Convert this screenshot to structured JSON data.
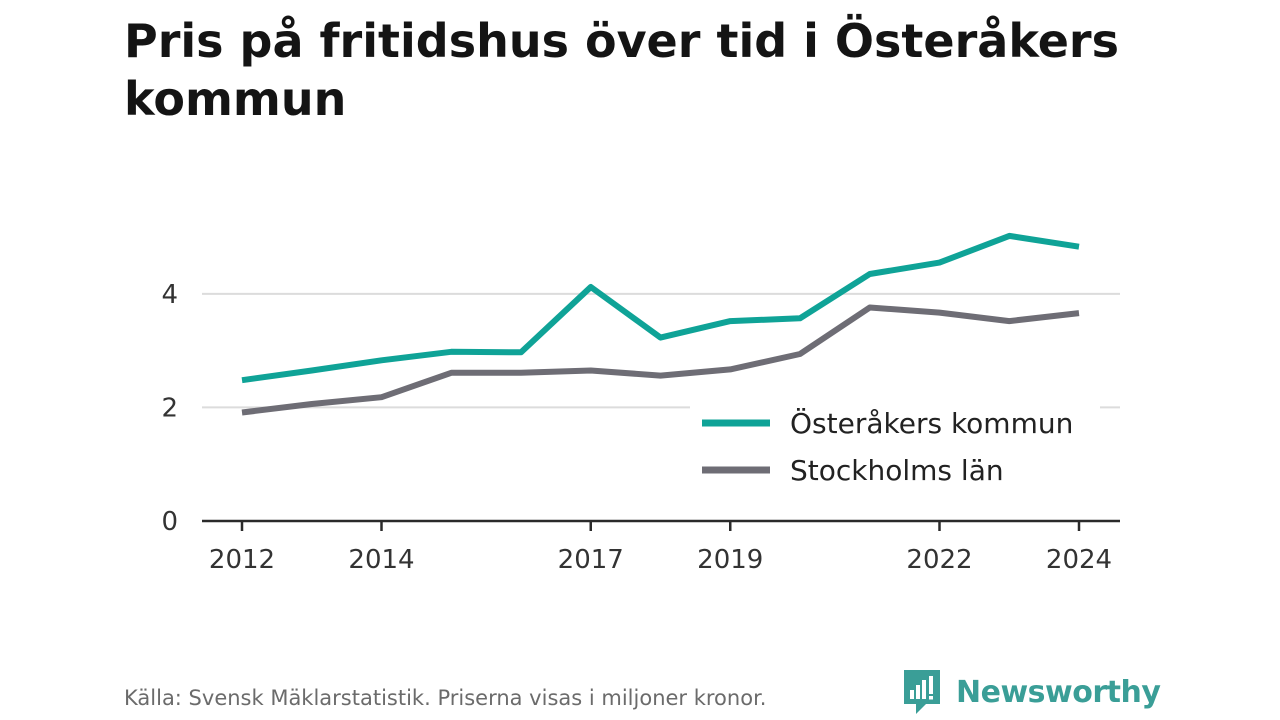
{
  "title": "Pris på fritidshus över tid i Österåkers kommun",
  "source": "Källa: Svensk Mäklarstatistik. Priserna visas i miljoner kronor.",
  "brand": {
    "name": "Newsworthy",
    "icon": "newsworthy-logo-icon",
    "color": "#3a9e97"
  },
  "chart_data": {
    "type": "line",
    "x": [
      2012,
      2013,
      2014,
      2015,
      2016,
      2017,
      2018,
      2019,
      2020,
      2021,
      2022,
      2023,
      2024
    ],
    "x_ticks": [
      "2012",
      "2014",
      "2017",
      "2019",
      "2022",
      "2024"
    ],
    "y_ticks": [
      "0",
      "2",
      "4"
    ],
    "ylim": [
      0,
      5.3
    ],
    "grid": true,
    "legend_position": "bottom-right",
    "series": [
      {
        "name": "Österåkers kommun",
        "color": "#0fa397",
        "values": [
          2.48,
          2.65,
          2.83,
          2.98,
          2.97,
          4.12,
          3.23,
          3.52,
          3.57,
          4.35,
          4.55,
          5.02,
          4.83
        ]
      },
      {
        "name": "Stockholms län",
        "color": "#6e6d75",
        "values": [
          1.91,
          2.06,
          2.18,
          2.61,
          2.61,
          2.65,
          2.56,
          2.67,
          2.94,
          3.76,
          3.67,
          3.52,
          3.66
        ]
      }
    ]
  }
}
